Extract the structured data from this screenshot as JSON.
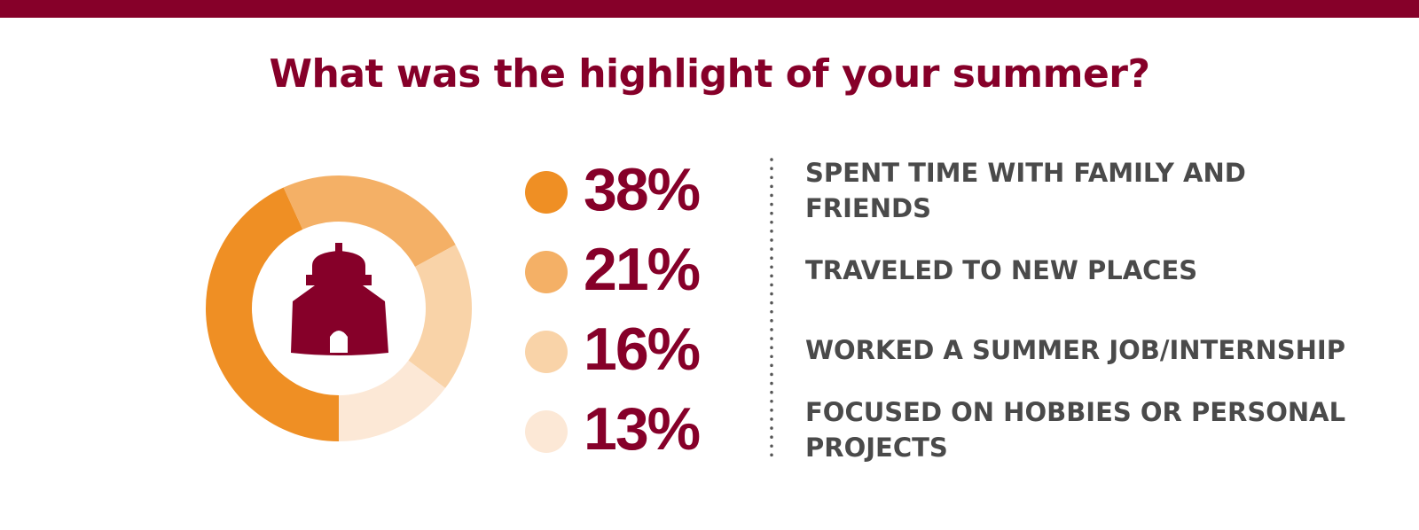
{
  "chart_data": {
    "type": "donut",
    "title": "What was the highlight of your summer?",
    "categories": [
      "SPENT TIME WITH FAMILY AND FRIENDS",
      "TRAVELED TO NEW PLACES",
      "WORKED A SUMMER JOB/INTERNSHIP",
      "FOCUSED ON HOBBIES OR PERSONAL PROJECTS"
    ],
    "values": [
      38,
      21,
      16,
      13
    ],
    "value_labels": [
      "38%",
      "21%",
      "16%",
      "13%"
    ],
    "colors": [
      "#ef8f24",
      "#f4b066",
      "#f9d3a8",
      "#fce8d6"
    ]
  }
}
